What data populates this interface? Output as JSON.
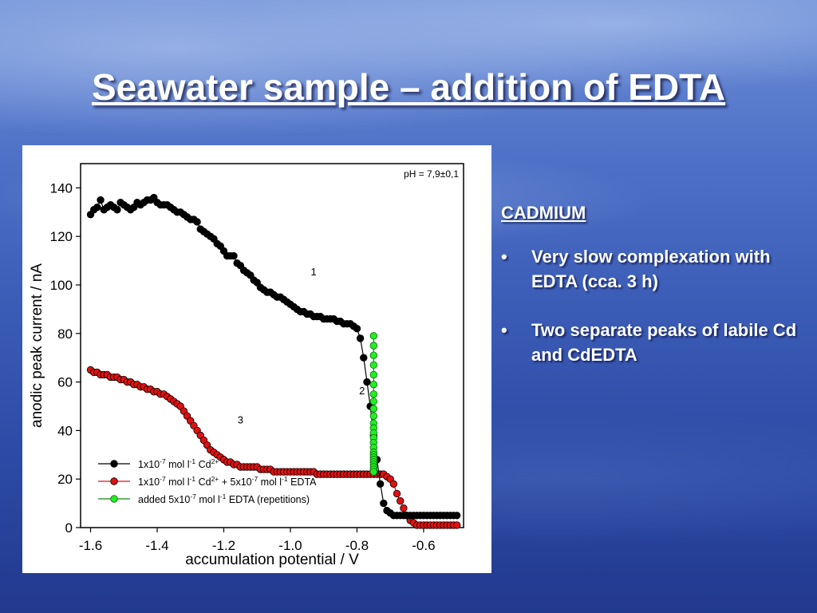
{
  "slide": {
    "title": "Seawater sample – addition of EDTA"
  },
  "side": {
    "heading": "CADMIUM",
    "bullet_symbol": "•",
    "bullets": [
      "Very slow complexation with EDTA (cca. 3 h)",
      "Two separate peaks of labile Cd and CdEDTA"
    ]
  },
  "chart_data": {
    "type": "scatter",
    "xlabel": "accumulation potential / V",
    "ylabel": "anodic peak current / nA",
    "xlim": [
      -1.63,
      -0.48
    ],
    "ylim": [
      0,
      150
    ],
    "x_ticks": [
      -1.6,
      -1.4,
      -1.2,
      -1.0,
      -0.8,
      -0.6
    ],
    "x_tick_labels": [
      "-1.6",
      "-1.4",
      "-1.2",
      "-1.0",
      "-0.8",
      "-0.6"
    ],
    "y_ticks": [
      0,
      20,
      40,
      60,
      80,
      100,
      120,
      140
    ],
    "y_tick_labels": [
      "0",
      "20",
      "40",
      "60",
      "80",
      "100",
      "120",
      "140"
    ],
    "annotation": "pH = 7,9±0,1",
    "curve_labels": [
      {
        "text": "1",
        "x": -0.93,
        "y": 104
      },
      {
        "text": "2",
        "x": -0.785,
        "y": 55
      },
      {
        "text": "3",
        "x": -1.15,
        "y": 43
      }
    ],
    "legend": {
      "position": "bottom-left",
      "entries": [
        {
          "base": "1x10",
          "sup1": "-7",
          "mid1": " mol l",
          "sup2": "-1",
          "mid2": " Cd",
          "sup3": "2+",
          "tail": ""
        },
        {
          "base": "1x10",
          "sup1": "-7",
          "mid1": " mol l",
          "sup2": "-1",
          "mid2": " Cd",
          "sup3": "2+",
          "tail": " + 5x10",
          "sup4": "-7",
          "mid3": " mol l",
          "sup5": "-1",
          "tail2": " EDTA"
        },
        {
          "base": "added 5x10",
          "sup1": "-7",
          "mid1": " mol l",
          "sup2": "-1",
          "mid2": " EDTA (repetitions)",
          "sup3": "",
          "tail": ""
        }
      ]
    },
    "series": [
      {
        "name": "1x10-7 mol l-1 Cd2+",
        "color": "#000000",
        "x": [
          -1.6,
          -1.59,
          -1.58,
          -1.57,
          -1.56,
          -1.55,
          -1.54,
          -1.53,
          -1.52,
          -1.51,
          -1.5,
          -1.49,
          -1.48,
          -1.47,
          -1.46,
          -1.45,
          -1.44,
          -1.43,
          -1.42,
          -1.41,
          -1.4,
          -1.39,
          -1.38,
          -1.37,
          -1.36,
          -1.35,
          -1.34,
          -1.33,
          -1.32,
          -1.31,
          -1.3,
          -1.29,
          -1.28,
          -1.27,
          -1.26,
          -1.25,
          -1.24,
          -1.23,
          -1.22,
          -1.21,
          -1.2,
          -1.19,
          -1.18,
          -1.17,
          -1.16,
          -1.15,
          -1.14,
          -1.13,
          -1.12,
          -1.11,
          -1.1,
          -1.09,
          -1.08,
          -1.07,
          -1.06,
          -1.05,
          -1.04,
          -1.03,
          -1.02,
          -1.01,
          -1.0,
          -0.99,
          -0.98,
          -0.97,
          -0.96,
          -0.95,
          -0.94,
          -0.93,
          -0.92,
          -0.91,
          -0.9,
          -0.89,
          -0.88,
          -0.87,
          -0.86,
          -0.85,
          -0.84,
          -0.83,
          -0.82,
          -0.81,
          -0.8,
          -0.79,
          -0.78,
          -0.77,
          -0.76,
          -0.75,
          -0.74,
          -0.73,
          -0.72,
          -0.71,
          -0.7,
          -0.69,
          -0.68,
          -0.67,
          -0.66,
          -0.65,
          -0.64,
          -0.63,
          -0.62,
          -0.61,
          -0.6,
          -0.59,
          -0.58,
          -0.57,
          -0.56,
          -0.55,
          -0.54,
          -0.53,
          -0.52,
          -0.51,
          -0.5
        ],
        "y": [
          129,
          131,
          132,
          135,
          131,
          132,
          133,
          132,
          131,
          134,
          133,
          132,
          131,
          132,
          134,
          133,
          134,
          135,
          135,
          136,
          134,
          133,
          133,
          133,
          132,
          131,
          130,
          130,
          129,
          128,
          127,
          127,
          126,
          123,
          122,
          121,
          120,
          119,
          117,
          116,
          114,
          112,
          112,
          112,
          109,
          108,
          106,
          105,
          104,
          102,
          101,
          99,
          98,
          97,
          97,
          96,
          95,
          95,
          94,
          93,
          92,
          91,
          90,
          89,
          89,
          88,
          88,
          87,
          87,
          87,
          86,
          86,
          86,
          86,
          85,
          85,
          84,
          84,
          84,
          83,
          82,
          78,
          70,
          60,
          50,
          38,
          28,
          18,
          10,
          7,
          6,
          5,
          5,
          5,
          5,
          5,
          5,
          5,
          5,
          5,
          5,
          5,
          5,
          5,
          5,
          5,
          5,
          5,
          5,
          5,
          5
        ]
      },
      {
        "name": "1x10-7 mol l-1 Cd2+ + 5x10-7 mol l-1 EDTA",
        "color": "#e01010",
        "x": [
          -1.6,
          -1.59,
          -1.58,
          -1.57,
          -1.56,
          -1.55,
          -1.54,
          -1.53,
          -1.52,
          -1.51,
          -1.5,
          -1.49,
          -1.48,
          -1.47,
          -1.46,
          -1.45,
          -1.44,
          -1.43,
          -1.42,
          -1.41,
          -1.4,
          -1.39,
          -1.38,
          -1.37,
          -1.36,
          -1.35,
          -1.34,
          -1.33,
          -1.32,
          -1.31,
          -1.3,
          -1.29,
          -1.28,
          -1.27,
          -1.26,
          -1.25,
          -1.24,
          -1.23,
          -1.22,
          -1.21,
          -1.2,
          -1.19,
          -1.18,
          -1.17,
          -1.16,
          -1.15,
          -1.14,
          -1.13,
          -1.12,
          -1.11,
          -1.1,
          -1.09,
          -1.08,
          -1.07,
          -1.06,
          -1.05,
          -1.04,
          -1.03,
          -1.02,
          -1.01,
          -1.0,
          -0.99,
          -0.98,
          -0.97,
          -0.96,
          -0.95,
          -0.94,
          -0.93,
          -0.92,
          -0.91,
          -0.9,
          -0.89,
          -0.88,
          -0.87,
          -0.86,
          -0.85,
          -0.84,
          -0.83,
          -0.82,
          -0.81,
          -0.8,
          -0.79,
          -0.78,
          -0.77,
          -0.76,
          -0.75,
          -0.74,
          -0.73,
          -0.72,
          -0.71,
          -0.7,
          -0.69,
          -0.68,
          -0.67,
          -0.66,
          -0.65,
          -0.64,
          -0.63,
          -0.62,
          -0.61,
          -0.6,
          -0.59,
          -0.58,
          -0.57,
          -0.56,
          -0.55,
          -0.54,
          -0.53,
          -0.52,
          -0.51,
          -0.5
        ],
        "y": [
          65,
          64,
          64,
          63,
          63,
          63,
          62,
          62,
          62,
          61,
          61,
          60,
          60,
          59,
          59,
          58,
          58,
          57,
          57,
          56,
          56,
          55,
          55,
          54,
          53,
          52,
          51,
          50,
          48,
          46,
          44,
          42,
          40,
          38,
          36,
          34,
          32,
          31,
          30,
          29,
          28,
          27,
          27,
          26,
          26,
          25,
          25,
          25,
          25,
          25,
          25,
          24,
          24,
          24,
          24,
          23,
          23,
          23,
          23,
          23,
          23,
          23,
          23,
          23,
          23,
          23,
          23,
          23,
          22,
          22,
          22,
          22,
          22,
          22,
          22,
          22,
          22,
          22,
          22,
          22,
          22,
          22,
          22,
          22,
          22,
          22,
          22,
          22,
          22,
          21,
          20,
          18,
          14,
          11,
          8,
          5,
          3,
          2,
          1,
          1,
          1,
          1,
          1,
          1,
          1,
          1,
          1,
          1,
          1,
          1,
          1
        ]
      },
      {
        "name": "added 5x10-7 mol l-1 EDTA (repetitions)",
        "color": "#22ee22",
        "x": [
          -0.75,
          -0.75,
          -0.75,
          -0.75,
          -0.75,
          -0.75,
          -0.75,
          -0.75,
          -0.75,
          -0.75,
          -0.75,
          -0.75,
          -0.75,
          -0.75,
          -0.75,
          -0.75,
          -0.75,
          -0.75,
          -0.75,
          -0.75,
          -0.75,
          -0.75,
          -0.75,
          -0.75,
          -0.75
        ],
        "y": [
          79,
          75,
          71,
          67,
          63,
          59,
          55,
          52,
          49,
          46,
          43,
          41,
          39,
          37,
          35,
          33,
          31,
          30,
          29,
          28,
          27,
          26,
          25,
          24,
          23
        ]
      }
    ]
  }
}
